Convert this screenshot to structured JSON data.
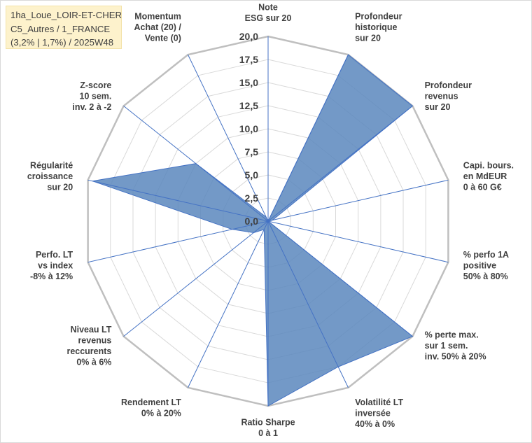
{
  "title_box": {
    "line1": "1ha_Loue_LOIR-ET-CHER",
    "line2": "C5_Autres / 1_FRANCE",
    "line3": "(3,2% | 1,7%) / 2025W48"
  },
  "chart_data": {
    "type": "radar",
    "rmin": 0,
    "rmax": 20,
    "tick_step": 2.5,
    "ticks": [
      "0,0",
      "2,5",
      "5,0",
      "7,5",
      "10,0",
      "12,5",
      "15,0",
      "17,5",
      "20,0"
    ],
    "grid": true,
    "fill_color": "#5b87bd",
    "fill_opacity": 0.85,
    "line_color": "#4472c4",
    "grid_color": "#d9d9d9",
    "frame_color": "#bfbfbf",
    "axis_color": "#4472c4",
    "axes": [
      {
        "label": [
          "Note",
          "ESG sur 20"
        ],
        "value": 0
      },
      {
        "label": [
          "Profondeur",
          "historique",
          "sur 20"
        ],
        "value": 20
      },
      {
        "label": [
          "Profondeur",
          "revenus",
          "sur 20"
        ],
        "value": 20
      },
      {
        "label": [
          "Capi. bours.",
          "en MdEUR",
          "0 à 60 G€"
        ],
        "value": 0.5
      },
      {
        "label": [
          "% perfo 1A",
          "positive",
          "50% à 80%"
        ],
        "value": 0
      },
      {
        "label": [
          "% perte max.",
          "sur 1 sem.",
          "inv. 50% à 20%"
        ],
        "value": 20
      },
      {
        "label": [
          "Volatilité LT",
          "inversée",
          "40% à 0%"
        ],
        "value": 17.5
      },
      {
        "label": [
          "Ratio Sharpe",
          "0 à 1"
        ],
        "value": 20
      },
      {
        "label": [
          "Rendement LT",
          "0% à 20%"
        ],
        "value": 1
      },
      {
        "label": [
          "Niveau LT",
          "revenus",
          "reccurents",
          "0% à 6%"
        ],
        "value": 2
      },
      {
        "label": [
          "Perfo. LT",
          "vs index",
          "-8% à 12%"
        ],
        "value": 4
      },
      {
        "label": [
          "Régularité",
          "croissance",
          "sur 20"
        ],
        "value": 19.5
      },
      {
        "label": [
          "Z-score",
          "10 sem.",
          "inv. 2 à -2"
        ],
        "value": 10
      },
      {
        "label": [
          "Momentum",
          "Achat (20) /",
          "Vente (0)"
        ],
        "value": 0.5
      }
    ]
  }
}
